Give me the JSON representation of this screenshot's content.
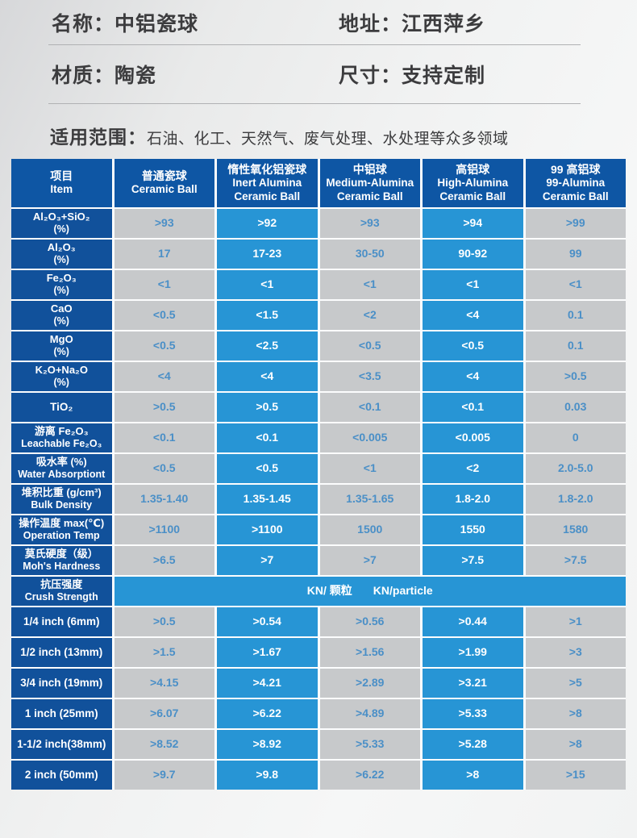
{
  "info": {
    "fields": [
      {
        "label": "名称：",
        "value": "中铝瓷球"
      },
      {
        "label": "地址：",
        "value": "江西萍乡"
      },
      {
        "label": "材质：",
        "value": "陶瓷"
      },
      {
        "label": "尺寸：",
        "value": "支持定制"
      }
    ],
    "scope_label": "适用范围：",
    "scope_text": "石油、化工、天然气、废气处理、水处理等众多领域"
  },
  "colors": {
    "header_blue": "#0e56a4",
    "item_blue": "#11519b",
    "cell_blue": "#2795d5",
    "cell_gray": "#c7c9cb",
    "value_blue": "#4a8fc7",
    "text_dark": "#3c3c3e",
    "divider": "#b0b1b3"
  },
  "table": {
    "header": [
      {
        "lines": [
          "项目",
          "Item"
        ]
      },
      {
        "lines": [
          "普通瓷球",
          "Ceramic Ball"
        ]
      },
      {
        "lines": [
          "惰性氧化铝瓷球",
          "Inert Alumina",
          "Ceramic Ball"
        ]
      },
      {
        "lines": [
          "中铝球",
          "Medium-Alumina",
          "Ceramic Ball"
        ]
      },
      {
        "lines": [
          "高铝球",
          "High-Alumina",
          "Ceramic Ball"
        ]
      },
      {
        "lines": [
          "99 高铝球",
          "99-Alumina",
          "Ceramic Ball"
        ]
      }
    ],
    "rows": [
      {
        "label": [
          "Al₂O₃+SiO₂",
          "(%)"
        ],
        "values": [
          ">93",
          ">92",
          ">93",
          ">94",
          ">99"
        ]
      },
      {
        "label": [
          "Al₂O₃",
          "(%)"
        ],
        "values": [
          "17",
          "17-23",
          "30-50",
          "90-92",
          "99"
        ]
      },
      {
        "label": [
          "Fe₂O₃",
          "(%)"
        ],
        "values": [
          "<1",
          "<1",
          "<1",
          "<1",
          "<1"
        ]
      },
      {
        "label": [
          "CaO",
          "(%)"
        ],
        "values": [
          "<0.5",
          "<1.5",
          "<2",
          "<4",
          "0.1"
        ]
      },
      {
        "label": [
          "MgO",
          "(%)"
        ],
        "values": [
          "<0.5",
          "<2.5",
          "<0.5",
          "<0.5",
          "0.1"
        ]
      },
      {
        "label": [
          "K₂O+Na₂O",
          "(%)"
        ],
        "values": [
          "<4",
          "<4",
          "<3.5",
          "<4",
          ">0.5"
        ]
      },
      {
        "label": [
          "TiO₂"
        ],
        "values": [
          ">0.5",
          ">0.5",
          "<0.1",
          "<0.1",
          "0.03"
        ]
      },
      {
        "label": [
          "游离 Fe₂O₃",
          "Leachable Fe₂O₃"
        ],
        "values": [
          "<0.1",
          "<0.1",
          "<0.005",
          "<0.005",
          "0"
        ]
      },
      {
        "label": [
          "吸水率 (%)",
          "Water Absorptiont"
        ],
        "values": [
          "<0.5",
          "<0.5",
          "<1",
          "<2",
          "2.0-5.0"
        ]
      },
      {
        "label": [
          "堆积比重 (g/cm³)",
          "Bulk Density"
        ],
        "values": [
          "1.35-1.40",
          "1.35-1.45",
          "1.35-1.65",
          "1.8-2.0",
          "1.8-2.0"
        ]
      },
      {
        "label": [
          "操作温度 max(℃)",
          "Operation Temp"
        ],
        "values": [
          ">1100",
          ">1100",
          "1500",
          "1550",
          "1580"
        ]
      },
      {
        "label": [
          "莫氏硬度（级）",
          "Moh's Hardness"
        ],
        "values": [
          ">6.5",
          ">7",
          ">7",
          ">7.5",
          ">7.5"
        ]
      },
      {
        "label": [
          "抗压强度",
          "Crush Strength"
        ],
        "span_unit": {
          "zh": "KN/ 颗粒",
          "en": "KN/particle"
        }
      },
      {
        "label": [
          "1/4 inch  (6mm)"
        ],
        "values": [
          ">0.5",
          ">0.54",
          ">0.56",
          ">0.44",
          ">1"
        ]
      },
      {
        "label": [
          "1/2 inch (13mm)"
        ],
        "values": [
          ">1.5",
          ">1.67",
          ">1.56",
          ">1.99",
          ">3"
        ]
      },
      {
        "label": [
          "3/4 inch (19mm)"
        ],
        "values": [
          ">4.15",
          ">4.21",
          ">2.89",
          ">3.21",
          ">5"
        ]
      },
      {
        "label": [
          "1 inch  (25mm)"
        ],
        "values": [
          ">6.07",
          ">6.22",
          ">4.89",
          ">5.33",
          ">8"
        ]
      },
      {
        "label": [
          "1-1/2 inch(38mm)"
        ],
        "values": [
          ">8.52",
          ">8.92",
          ">5.33",
          ">5.28",
          ">8"
        ]
      },
      {
        "label": [
          "2 inch  (50mm)"
        ],
        "values": [
          ">9.7",
          ">9.8",
          ">6.22",
          ">8",
          ">15"
        ]
      }
    ]
  }
}
